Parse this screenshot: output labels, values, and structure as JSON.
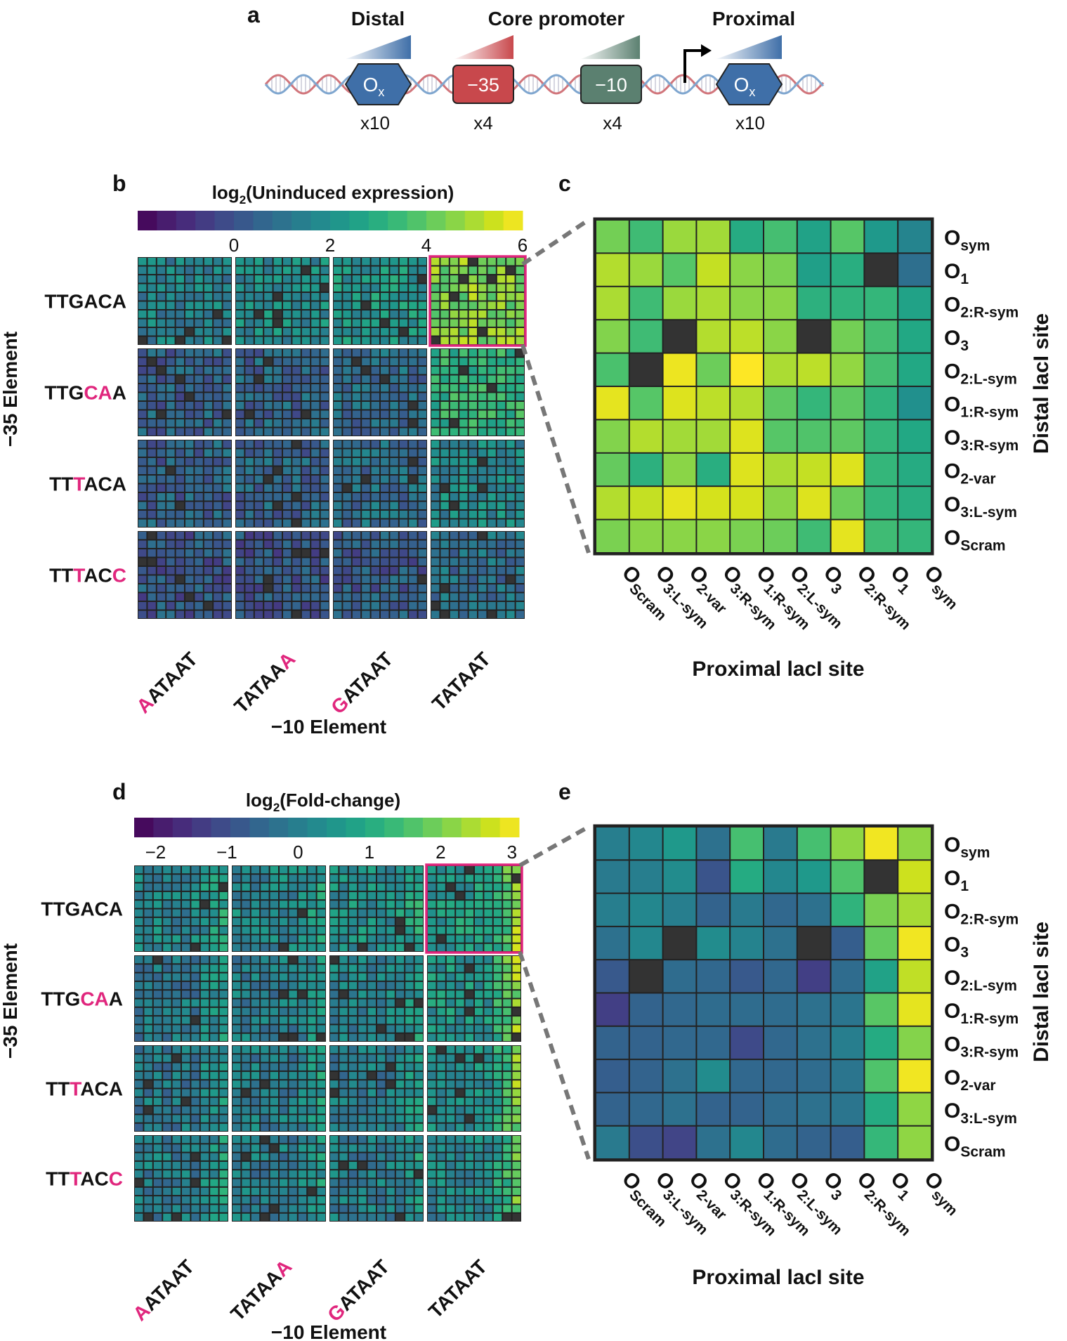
{
  "panel_letters": {
    "a": "a",
    "b": "b",
    "c": "c",
    "d": "d",
    "e": "e"
  },
  "schematic": {
    "distal_label": "Distal",
    "core_label": "Core promoter",
    "proximal_label": "Proximal",
    "box_ox_main": "O",
    "box_ox_sub": "x",
    "box_minus35": "−35",
    "box_minus10": "−10",
    "count_distal": "x10",
    "count_m35": "x4",
    "count_m10": "x4",
    "count_proximal": "x10",
    "colors": {
      "operator": "#3f6fa8",
      "minus35": "#c8484c",
      "minus10": "#5b8070",
      "dna_blue": "#7fa6cf",
      "dna_red": "#d1757b"
    }
  },
  "colorscale": {
    "viridis": [
      "#440154",
      "#481a6c",
      "#472f7d",
      "#414487",
      "#39568c",
      "#31688e",
      "#2a788e",
      "#23888e",
      "#1f988b",
      "#22a884",
      "#35b779",
      "#54c568",
      "#7ad151",
      "#a5db36",
      "#d2e21b",
      "#fde725"
    ],
    "missing_color": "#333333",
    "highlight_color": "#e0267d",
    "mutation_color": "#e0267d"
  },
  "minus35_elements": [
    {
      "parts": [
        {
          "t": "TTGACA",
          "m": false
        }
      ]
    },
    {
      "parts": [
        {
          "t": "TTG",
          "m": false
        },
        {
          "t": "CA",
          "m": true
        },
        {
          "t": "A",
          "m": false
        }
      ]
    },
    {
      "parts": [
        {
          "t": "TT",
          "m": false
        },
        {
          "t": "T",
          "m": true
        },
        {
          "t": "ACA",
          "m": false
        }
      ]
    },
    {
      "parts": [
        {
          "t": "TT",
          "m": false
        },
        {
          "t": "T",
          "m": true
        },
        {
          "t": "AC",
          "m": false
        },
        {
          "t": "C",
          "m": true
        }
      ]
    }
  ],
  "minus10_elements": [
    {
      "parts": [
        {
          "t": "A",
          "m": true
        },
        {
          "t": "ATAAT",
          "m": false
        }
      ]
    },
    {
      "parts": [
        {
          "t": "TATAA",
          "m": false
        },
        {
          "t": "A",
          "m": true
        }
      ]
    },
    {
      "parts": [
        {
          "t": "G",
          "m": true
        },
        {
          "t": "ATAAT",
          "m": false
        }
      ]
    },
    {
      "parts": [
        {
          "t": "TATAAT",
          "m": false
        }
      ]
    }
  ],
  "operator_sites": [
    {
      "main": "O",
      "sub": "sym"
    },
    {
      "main": "O",
      "sub": "1"
    },
    {
      "main": "O",
      "sub": "2:R-sym"
    },
    {
      "main": "O",
      "sub": "3"
    },
    {
      "main": "O",
      "sub": "2:L-sym"
    },
    {
      "main": "O",
      "sub": "1:R-sym"
    },
    {
      "main": "O",
      "sub": "3:R-sym"
    },
    {
      "main": "O",
      "sub": "2-var"
    },
    {
      "main": "O",
      "sub": "3:L-sym"
    },
    {
      "main": "O",
      "sub": "Scram"
    }
  ],
  "chart_data": [
    {
      "id": "b",
      "type": "heatmap",
      "title_main": "log",
      "title_sub": "2",
      "title_rest": "(Uninduced expression)",
      "colorbar_range": [
        -2,
        6
      ],
      "colorbar_ticks": [
        "0",
        "2",
        "4",
        "6"
      ],
      "colorbar_tick_values": [
        0,
        2,
        4,
        6
      ],
      "ylabel": "−35 Element",
      "xlabel": "−10 Element",
      "block_means": [
        [
          1.5,
          1.9,
          2.2,
          4.5
        ],
        [
          0.5,
          0.6,
          0.8,
          3.2
        ],
        [
          0.5,
          0.6,
          0.9,
          1.8
        ],
        [
          0.2,
          0.1,
          0.3,
          0.9
        ]
      ],
      "highlight_block": [
        0,
        3
      ]
    },
    {
      "id": "c",
      "type": "heatmap",
      "xlabel": "Proximal lacI site",
      "ylabel": "Distal lacI site",
      "colorbar_range": [
        -2,
        6
      ],
      "rows": [
        "Osym",
        "O1",
        "O2:R-sym",
        "O3",
        "O2:L-sym",
        "O1:R-sym",
        "O3:R-sym",
        "O2-var",
        "O3:L-sym",
        "OScram"
      ],
      "columns": [
        "OScram",
        "O3:L-sym",
        "O2-var",
        "O3:R-sym",
        "O1:R-sym",
        "O2:L-sym",
        "O3",
        "O2:R-sym",
        "O1",
        "Osym"
      ],
      "values": [
        [
          4.3,
          3.5,
          4.8,
          4.9,
          2.9,
          3.6,
          2.6,
          3.9,
          2.3,
          1.6
        ],
        [
          5.1,
          4.8,
          3.9,
          5.3,
          4.6,
          4.4,
          2.5,
          3.0,
          null,
          0.9
        ],
        [
          5.0,
          3.5,
          4.8,
          5.0,
          4.6,
          4.6,
          3.1,
          3.2,
          3.3,
          2.6
        ],
        [
          4.5,
          3.5,
          null,
          5.1,
          5.2,
          4.6,
          null,
          4.3,
          3.6,
          2.8
        ],
        [
          3.7,
          null,
          5.8,
          4.2,
          6.0,
          5.0,
          5.2,
          4.7,
          3.6,
          2.8
        ],
        [
          5.7,
          3.9,
          5.6,
          5.2,
          5.1,
          4.0,
          3.3,
          4.0,
          3.2,
          2.0
        ],
        [
          4.5,
          5.1,
          4.9,
          4.9,
          5.6,
          3.9,
          3.8,
          4.0,
          3.3,
          2.8
        ],
        [
          4.1,
          3.1,
          4.6,
          3.0,
          5.6,
          5.0,
          5.3,
          5.6,
          3.3,
          2.9
        ],
        [
          5.1,
          5.3,
          5.7,
          5.5,
          5.5,
          4.6,
          5.6,
          4.2,
          3.3,
          3.0
        ],
        [
          4.4,
          4.6,
          4.6,
          4.6,
          4.4,
          4.2,
          3.5,
          5.7,
          3.5,
          3.3
        ]
      ]
    },
    {
      "id": "d",
      "type": "heatmap",
      "title_main": "log",
      "title_sub": "2",
      "title_rest": "(Fold-change)",
      "colorbar_range": [
        -2.3,
        3.1
      ],
      "colorbar_ticks": [
        "−2",
        "−1",
        "0",
        "1",
        "2",
        "3"
      ],
      "colorbar_tick_values": [
        -2,
        -1,
        0,
        1,
        2,
        3
      ],
      "ylabel": "−35 Element",
      "xlabel": "−10 Element",
      "block_means": [
        [
          0.2,
          0.2,
          0.4,
          0.6
        ],
        [
          -0.1,
          0.0,
          0.1,
          0.5
        ],
        [
          -0.1,
          0.0,
          0.0,
          0.4
        ],
        [
          0.0,
          0.0,
          0.0,
          0.2
        ]
      ],
      "highlight_block": [
        0,
        3
      ]
    },
    {
      "id": "e",
      "type": "heatmap",
      "xlabel": "Proximal lacI site",
      "ylabel": "Distal lacI site",
      "colorbar_range": [
        -2.3,
        3.1
      ],
      "rows": [
        "Osym",
        "O1",
        "O2:R-sym",
        "O3",
        "O2:L-sym",
        "O1:R-sym",
        "O3:R-sym",
        "O2-var",
        "O3:L-sym",
        "OScram"
      ],
      "columns": [
        "OScram",
        "O3:L-sym",
        "O2-var",
        "O3:R-sym",
        "O1:R-sym",
        "O2:L-sym",
        "O3",
        "O2:R-sym",
        "O1",
        "Osym"
      ],
      "values": [
        [
          0.0,
          0.2,
          0.6,
          -0.3,
          1.5,
          -0.1,
          1.5,
          2.2,
          3.0,
          2.2
        ],
        [
          -0.1,
          0.0,
          0.3,
          -0.9,
          1.0,
          0.2,
          0.6,
          1.6,
          null,
          2.7
        ],
        [
          0.0,
          0.2,
          0.0,
          -0.6,
          -0.1,
          -0.5,
          -0.3,
          1.2,
          2.0,
          2.4
        ],
        [
          -0.3,
          0.2,
          null,
          0.3,
          0.1,
          -0.3,
          null,
          -0.7,
          1.8,
          3.0
        ],
        [
          -0.8,
          null,
          -0.4,
          -0.5,
          -0.8,
          -0.5,
          -1.3,
          -0.4,
          0.8,
          2.6
        ],
        [
          -1.3,
          -0.6,
          -0.5,
          -0.4,
          -0.4,
          -0.4,
          -0.3,
          -0.2,
          1.7,
          2.9
        ],
        [
          -0.6,
          -0.6,
          -0.5,
          -0.5,
          -1.1,
          -0.5,
          -0.3,
          0.0,
          1.0,
          2.1
        ],
        [
          -0.7,
          -0.6,
          -0.3,
          0.3,
          -0.5,
          -0.5,
          -0.4,
          -0.2,
          1.6,
          3.0
        ],
        [
          -0.6,
          -0.5,
          -0.3,
          -0.6,
          -0.6,
          -0.4,
          -0.3,
          -0.2,
          1.0,
          2.2
        ],
        [
          -0.1,
          -1.0,
          -1.2,
          -0.3,
          0.2,
          -0.4,
          -0.6,
          -0.7,
          1.3,
          2.2
        ]
      ]
    }
  ]
}
